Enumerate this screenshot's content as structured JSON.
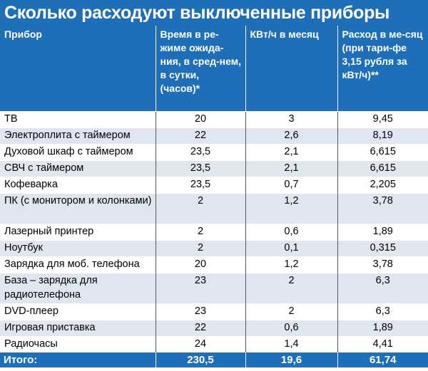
{
  "title": "Сколько расходуют выключенные приборы",
  "headers": [
    "Прибор",
    "Время в ре-жиме ожида-ния, в сред-нем, в сутки, (часов)*",
    "КВт/ч в месяц",
    "Расход в ме-сяц (при тари-фе 3,15 рубля за кВт/ч)**"
  ],
  "rows": [
    {
      "device": "ТВ",
      "hours": "20",
      "kwh": "3",
      "cost": "9,45",
      "h": 1
    },
    {
      "device": "Электроплита с таймером",
      "hours": "22",
      "kwh": "2,6",
      "cost": "8,19",
      "h": 1
    },
    {
      "device": "Духовой шкаф с таймером",
      "hours": "23,5",
      "kwh": "2,1",
      "cost": "6,615",
      "h": 1
    },
    {
      "device": "СВЧ с таймером",
      "hours": "23,5",
      "kwh": "2,1",
      "cost": "6,615",
      "h": 1
    },
    {
      "device": "Кофеварка",
      "hours": "23,5",
      "kwh": "0,7",
      "cost": "2,205",
      "h": 1
    },
    {
      "device": "ПК (с монитором и колонками)",
      "hours": "2",
      "kwh": "1,2",
      "cost": "3,78",
      "h": 2
    },
    {
      "device": "Лазерный принтер",
      "hours": "2",
      "kwh": "0,6",
      "cost": "1,89",
      "h": 1
    },
    {
      "device": "Ноутбук",
      "hours": "2",
      "kwh": "0,1",
      "cost": "0,315",
      "h": 1
    },
    {
      "device": "Зарядка для моб. телефона",
      "hours": "20",
      "kwh": "1,2",
      "cost": "3,78",
      "h": 1
    },
    {
      "device": "База – зарядка для радиотелефона",
      "hours": "23",
      "kwh": "2",
      "cost": "6,3",
      "h": 2
    },
    {
      "device": "DVD-плеер",
      "hours": "23",
      "kwh": "2",
      "cost": "6,3",
      "h": 1
    },
    {
      "device": "Игровая приставка",
      "hours": "22",
      "kwh": "0,6",
      "cost": "1,89",
      "h": 1
    },
    {
      "device": "Радиочасы",
      "hours": "24",
      "kwh": "1,4",
      "cost": "4,41",
      "h": 1
    }
  ],
  "total": {
    "label": "Итого:",
    "hours": "230,5",
    "kwh": "19,6",
    "cost": "61,74"
  },
  "colors": {
    "accent": "#1f6fb8",
    "stripe": "#dfe6ef"
  }
}
